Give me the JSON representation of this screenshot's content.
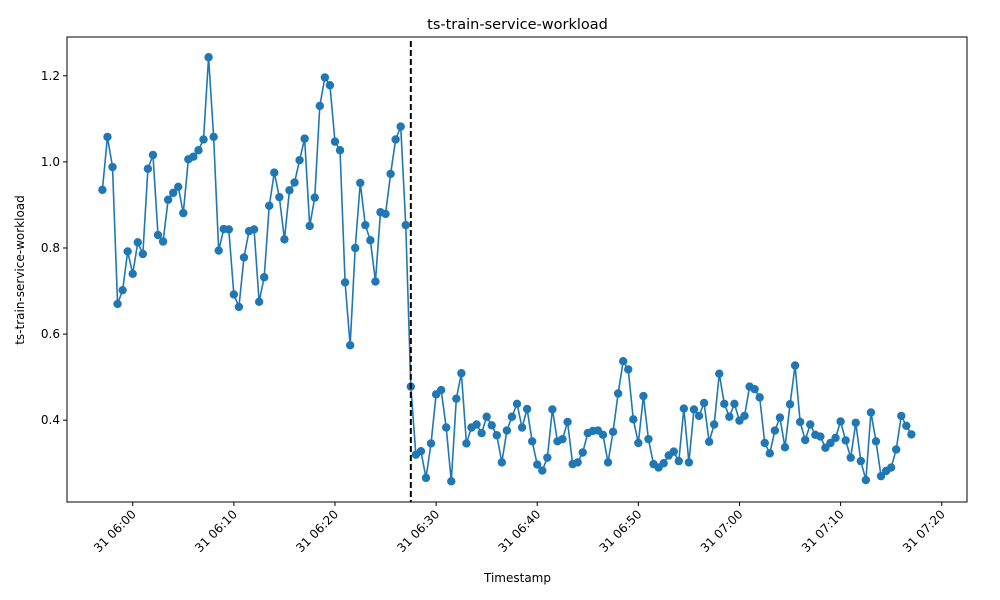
{
  "chart_data": {
    "type": "line",
    "title": "ts-train-service-workload",
    "xlabel": "Timestamp",
    "ylabel": "ts-train-service-workload",
    "x_start": "31 05:57",
    "x_step_minutes": 0.5,
    "xlim_minutes_after_06_00": [
      -6.5,
      82.5
    ],
    "ylim": [
      0.21,
      1.29
    ],
    "x_ticks": [
      {
        "label": "31 06:00",
        "minutes": 0
      },
      {
        "label": "31 06:10",
        "minutes": 10
      },
      {
        "label": "31 06:20",
        "minutes": 20
      },
      {
        "label": "31 06:30",
        "minutes": 30
      },
      {
        "label": "31 06:40",
        "minutes": 40
      },
      {
        "label": "31 06:50",
        "minutes": 50
      },
      {
        "label": "31 07:00",
        "minutes": 60
      },
      {
        "label": "31 07:10",
        "minutes": 70
      },
      {
        "label": "31 07:20",
        "minutes": 80
      }
    ],
    "y_ticks": [
      {
        "label": "0.4",
        "value": 0.4
      },
      {
        "label": "0.6",
        "value": 0.6
      },
      {
        "label": "0.8",
        "value": 0.8
      },
      {
        "label": "1.0",
        "value": 1.0
      },
      {
        "label": "1.2",
        "value": 1.2
      }
    ],
    "vline_minutes": 27.5,
    "series": [
      {
        "color": "#1f77b4",
        "values": [
          0.935,
          1.058,
          0.988,
          0.67,
          0.702,
          0.792,
          0.74,
          0.813,
          0.786,
          0.984,
          1.016,
          0.83,
          0.815,
          0.912,
          0.928,
          0.942,
          0.881,
          1.006,
          1.012,
          1.027,
          1.052,
          1.243,
          1.058,
          0.794,
          0.844,
          0.843,
          0.692,
          0.663,
          0.778,
          0.839,
          0.843,
          0.675,
          0.732,
          0.898,
          0.975,
          0.918,
          0.82,
          0.934,
          0.952,
          1.004,
          1.054,
          0.851,
          0.917,
          1.13,
          1.196,
          1.178,
          1.047,
          1.027,
          0.72,
          0.574,
          0.8,
          0.951,
          0.853,
          0.818,
          0.722,
          0.883,
          0.879,
          0.972,
          1.052,
          1.082,
          0.853,
          0.478,
          0.32,
          0.328,
          0.266,
          0.346,
          0.46,
          0.47,
          0.383,
          0.258,
          0.45,
          0.509,
          0.346,
          0.383,
          0.39,
          0.37,
          0.408,
          0.388,
          0.365,
          0.302,
          0.376,
          0.408,
          0.438,
          0.383,
          0.426,
          0.351,
          0.297,
          0.283,
          0.313,
          0.425,
          0.351,
          0.356,
          0.396,
          0.298,
          0.302,
          0.325,
          0.37,
          0.375,
          0.376,
          0.366,
          0.302,
          0.373,
          0.462,
          0.537,
          0.518,
          0.402,
          0.347,
          0.456,
          0.356,
          0.298,
          0.29,
          0.3,
          0.318,
          0.327,
          0.305,
          0.427,
          0.302,
          0.425,
          0.41,
          0.44,
          0.35,
          0.39,
          0.508,
          0.438,
          0.408,
          0.438,
          0.399,
          0.41,
          0.478,
          0.472,
          0.453,
          0.347,
          0.323,
          0.376,
          0.406,
          0.337,
          0.437,
          0.527,
          0.396,
          0.354,
          0.39,
          0.366,
          0.362,
          0.336,
          0.347,
          0.359,
          0.397,
          0.353,
          0.313,
          0.394,
          0.305,
          0.261,
          0.418,
          0.351,
          0.27,
          0.282,
          0.29,
          0.332,
          0.41,
          0.387,
          0.367
        ]
      }
    ]
  }
}
